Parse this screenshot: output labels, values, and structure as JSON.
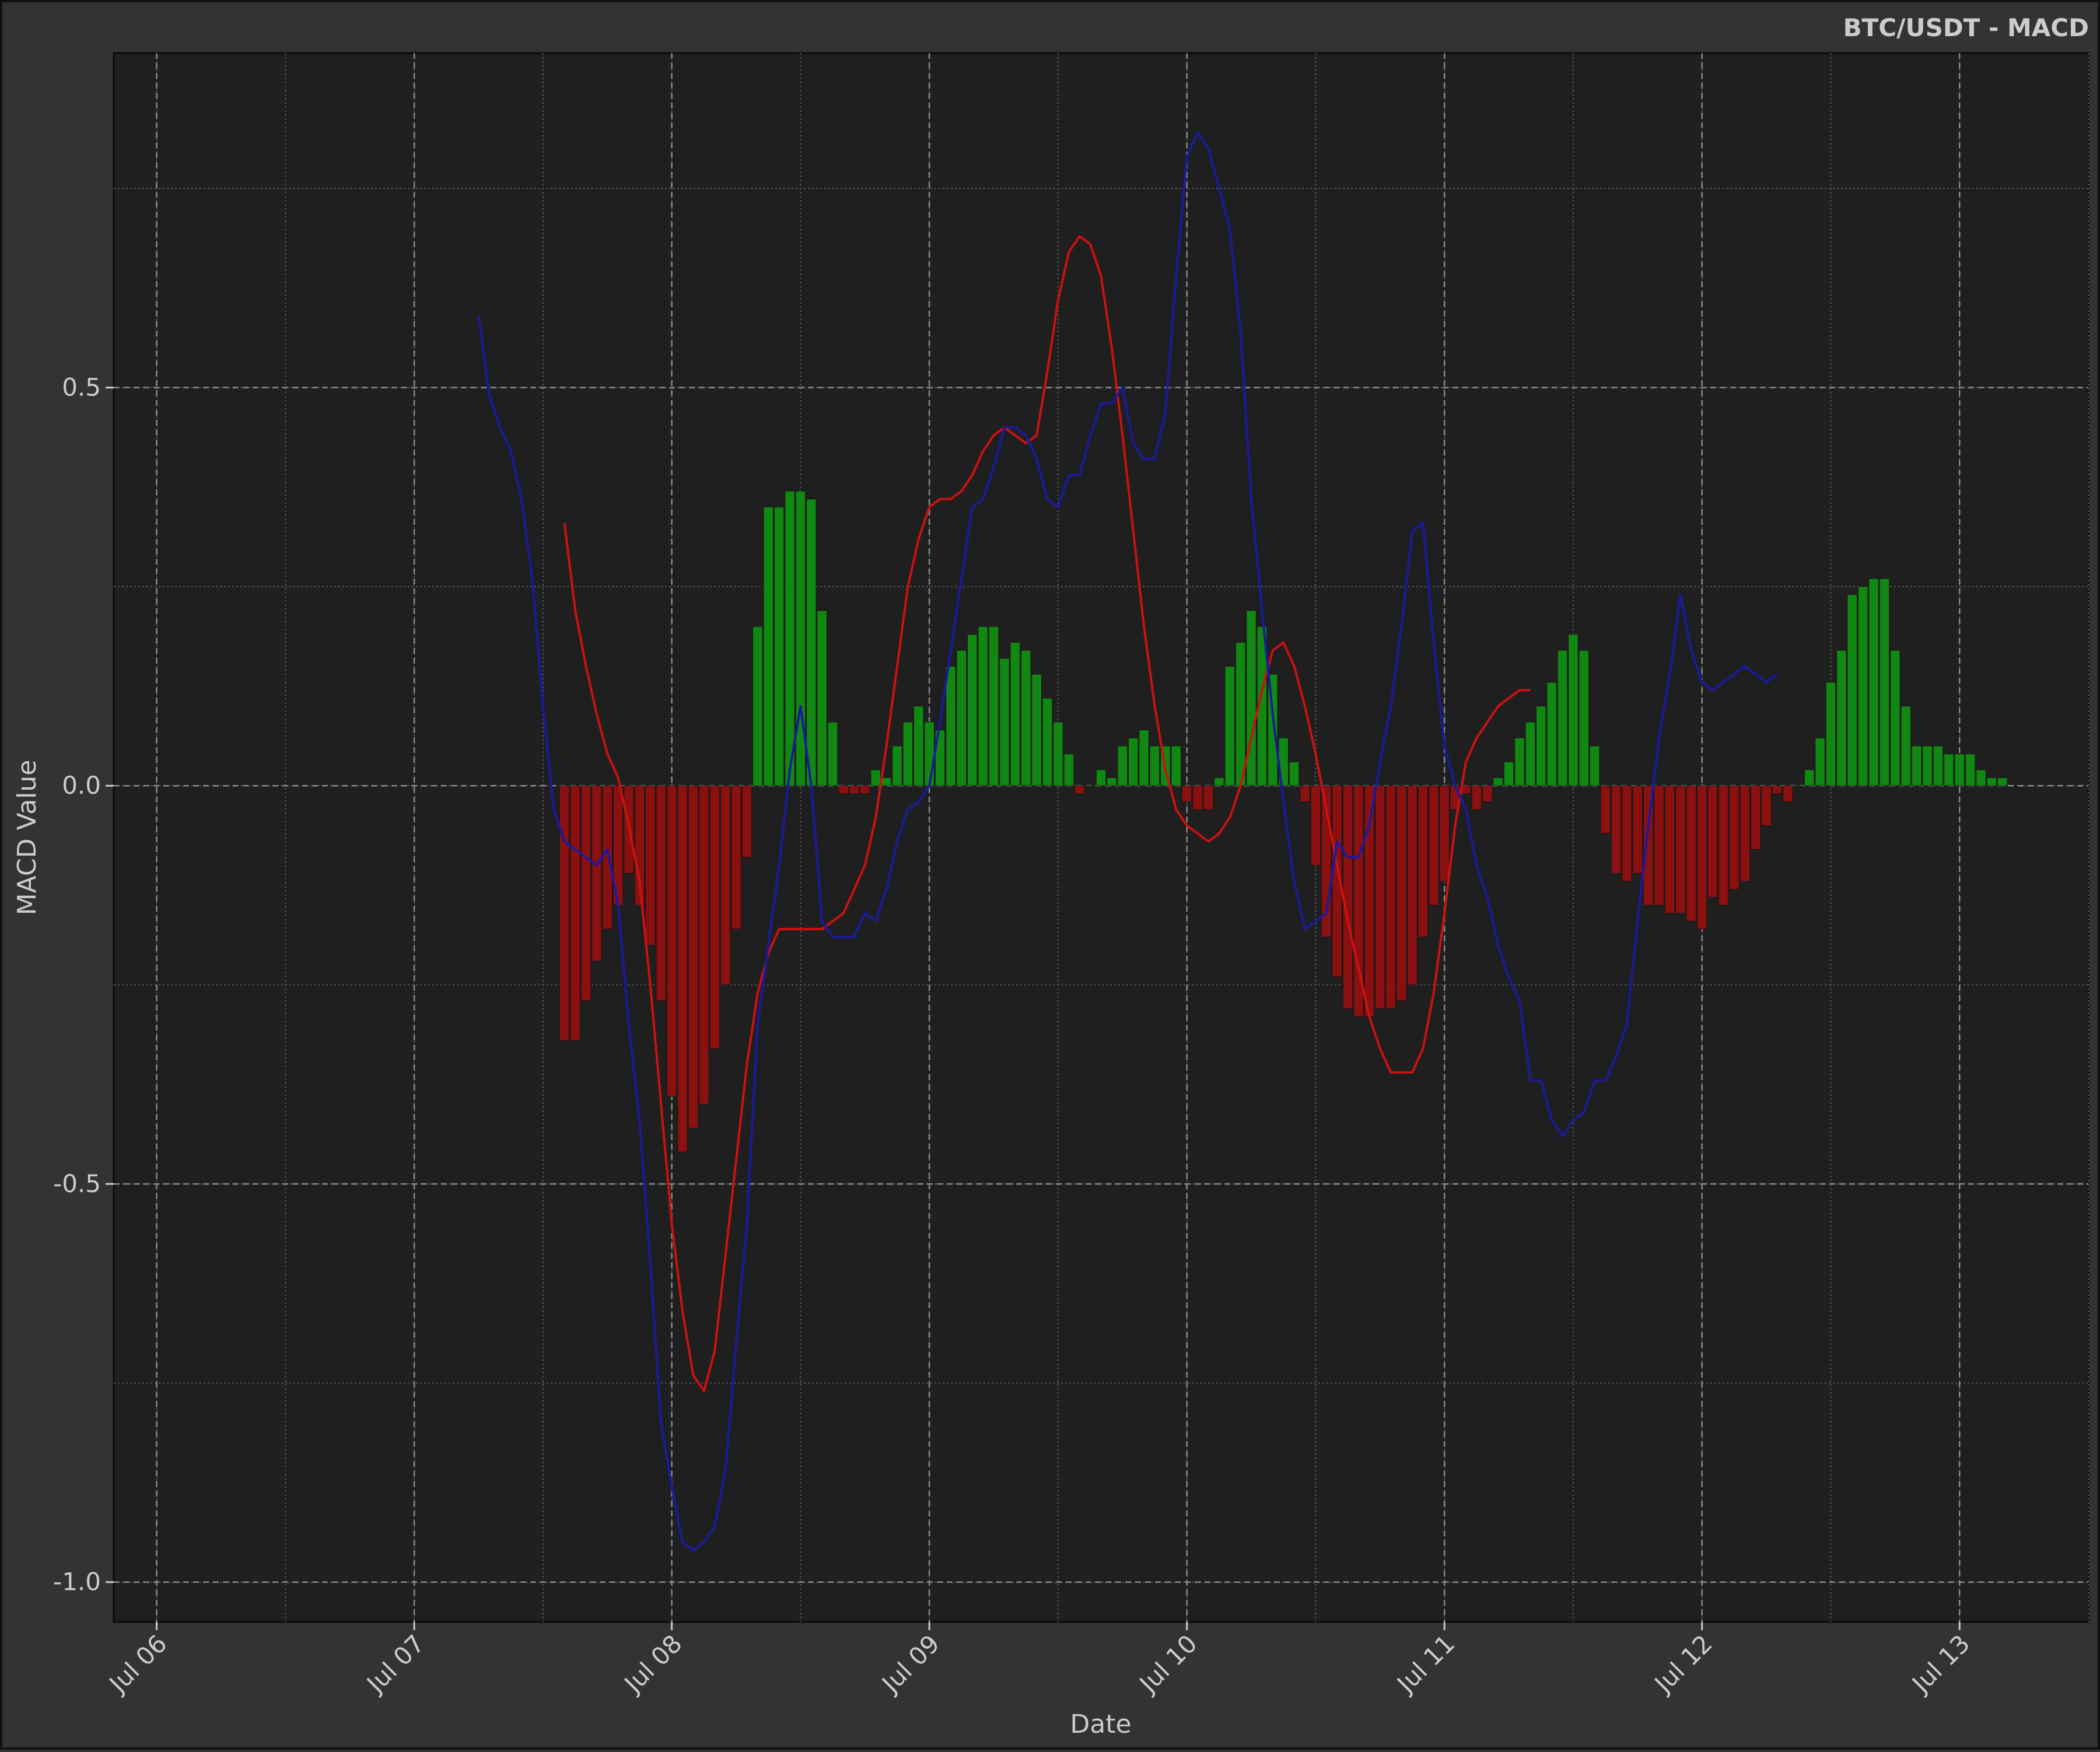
{
  "chart_data": {
    "type": "line",
    "title": "BTC/USDT - MACD",
    "xlabel": "Date",
    "ylabel": "MACD Value",
    "x_range": [
      "2023-07-05T20:00",
      "2023-07-13T12:00"
    ],
    "ylim": [
      -1.05,
      0.92
    ],
    "x_ticks": [
      {
        "date": "2023-07-06T00:00",
        "label": "Jul 06"
      },
      {
        "date": "2023-07-07T00:00",
        "label": "Jul 07"
      },
      {
        "date": "2023-07-08T00:00",
        "label": "Jul 08"
      },
      {
        "date": "2023-07-09T00:00",
        "label": "Jul 09"
      },
      {
        "date": "2023-07-10T00:00",
        "label": "Jul 10"
      },
      {
        "date": "2023-07-11T00:00",
        "label": "Jul 11"
      },
      {
        "date": "2023-07-12T00:00",
        "label": "Jul 12"
      },
      {
        "date": "2023-07-13T00:00",
        "label": "Jul 13"
      }
    ],
    "y_ticks": [
      {
        "value": 0.5,
        "label": "0.5"
      },
      {
        "value": 0.0,
        "label": "0.0"
      },
      {
        "value": -0.5,
        "label": "-0.5"
      },
      {
        "value": -1.0,
        "label": "-1.0"
      }
    ],
    "grid": true,
    "colors": {
      "macd": "#1a1aa0",
      "signal": "#cc1111",
      "hist_pos": "#118811",
      "hist_neg": "#8b1010",
      "plot_bg": "#1f1f1f",
      "figure_bg": "#333333"
    },
    "series": [
      {
        "kind": "line",
        "color": "#1a1aa0",
        "points": [
          [
            "2023-07-07T06:00",
            0.59
          ],
          [
            "2023-07-07T07:00",
            0.49
          ],
          [
            "2023-07-07T08:00",
            0.45
          ],
          [
            "2023-07-07T09:00",
            0.42
          ],
          [
            "2023-07-07T10:00",
            0.36
          ],
          [
            "2023-07-07T11:00",
            0.26
          ],
          [
            "2023-07-07T12:00",
            0.1
          ],
          [
            "2023-07-07T13:00",
            -0.03
          ],
          [
            "2023-07-07T14:00",
            -0.07
          ],
          [
            "2023-07-07T15:00",
            -0.08
          ],
          [
            "2023-07-07T16:00",
            -0.09
          ],
          [
            "2023-07-07T17:00",
            -0.1
          ],
          [
            "2023-07-07T18:00",
            -0.08
          ],
          [
            "2023-07-07T19:00",
            -0.15
          ],
          [
            "2023-07-07T20:00",
            -0.3
          ],
          [
            "2023-07-07T21:00",
            -0.42
          ],
          [
            "2023-07-07T22:00",
            -0.6
          ],
          [
            "2023-07-07T23:00",
            -0.8
          ],
          [
            "2023-07-08T00:00",
            -0.88
          ],
          [
            "2023-07-08T01:00",
            -0.95
          ],
          [
            "2023-07-08T02:00",
            -0.96
          ],
          [
            "2023-07-08T03:00",
            -0.95
          ],
          [
            "2023-07-08T04:00",
            -0.93
          ],
          [
            "2023-07-08T05:00",
            -0.86
          ],
          [
            "2023-07-08T06:00",
            -0.7
          ],
          [
            "2023-07-08T07:00",
            -0.55
          ],
          [
            "2023-07-08T08:00",
            -0.3
          ],
          [
            "2023-07-08T09:00",
            -0.2
          ],
          [
            "2023-07-08T10:00",
            -0.1
          ],
          [
            "2023-07-08T11:00",
            0.02
          ],
          [
            "2023-07-08T12:00",
            0.1
          ],
          [
            "2023-07-08T13:00",
            0.0
          ],
          [
            "2023-07-08T14:00",
            -0.17
          ],
          [
            "2023-07-08T15:00",
            -0.19
          ],
          [
            "2023-07-08T16:00",
            -0.19
          ],
          [
            "2023-07-08T17:00",
            -0.19
          ],
          [
            "2023-07-08T18:00",
            -0.16
          ],
          [
            "2023-07-08T19:00",
            -0.17
          ],
          [
            "2023-07-08T20:00",
            -0.13
          ],
          [
            "2023-07-08T21:00",
            -0.07
          ],
          [
            "2023-07-08T22:00",
            -0.03
          ],
          [
            "2023-07-08T23:00",
            -0.02
          ],
          [
            "2023-07-09T00:00",
            0.0
          ],
          [
            "2023-07-09T01:00",
            0.08
          ],
          [
            "2023-07-09T02:00",
            0.17
          ],
          [
            "2023-07-09T03:00",
            0.26
          ],
          [
            "2023-07-09T04:00",
            0.35
          ],
          [
            "2023-07-09T05:00",
            0.36
          ],
          [
            "2023-07-09T06:00",
            0.4
          ],
          [
            "2023-07-09T07:00",
            0.45
          ],
          [
            "2023-07-09T08:00",
            0.45
          ],
          [
            "2023-07-09T09:00",
            0.44
          ],
          [
            "2023-07-09T10:00",
            0.41
          ],
          [
            "2023-07-09T11:00",
            0.36
          ],
          [
            "2023-07-09T12:00",
            0.35
          ],
          [
            "2023-07-09T13:00",
            0.39
          ],
          [
            "2023-07-09T14:00",
            0.39
          ],
          [
            "2023-07-09T15:00",
            0.44
          ],
          [
            "2023-07-09T16:00",
            0.48
          ],
          [
            "2023-07-09T17:00",
            0.48
          ],
          [
            "2023-07-09T18:00",
            0.5
          ],
          [
            "2023-07-09T19:00",
            0.43
          ],
          [
            "2023-07-09T20:00",
            0.41
          ],
          [
            "2023-07-09T21:00",
            0.41
          ],
          [
            "2023-07-09T22:00",
            0.47
          ],
          [
            "2023-07-09T23:00",
            0.64
          ],
          [
            "2023-07-10T00:00",
            0.79
          ],
          [
            "2023-07-10T01:00",
            0.82
          ],
          [
            "2023-07-10T02:00",
            0.8
          ],
          [
            "2023-07-10T03:00",
            0.75
          ],
          [
            "2023-07-10T04:00",
            0.7
          ],
          [
            "2023-07-10T05:00",
            0.57
          ],
          [
            "2023-07-10T06:00",
            0.36
          ],
          [
            "2023-07-10T07:00",
            0.22
          ],
          [
            "2023-07-10T08:00",
            0.09
          ],
          [
            "2023-07-10T09:00",
            -0.02
          ],
          [
            "2023-07-10T10:00",
            -0.12
          ],
          [
            "2023-07-10T11:00",
            -0.18
          ],
          [
            "2023-07-10T12:00",
            -0.17
          ],
          [
            "2023-07-10T13:00",
            -0.16
          ],
          [
            "2023-07-10T14:00",
            -0.07
          ],
          [
            "2023-07-10T15:00",
            -0.09
          ],
          [
            "2023-07-10T16:00",
            -0.09
          ],
          [
            "2023-07-10T17:00",
            -0.05
          ],
          [
            "2023-07-10T18:00",
            0.03
          ],
          [
            "2023-07-10T19:00",
            0.1
          ],
          [
            "2023-07-10T20:00",
            0.2
          ],
          [
            "2023-07-10T21:00",
            0.32
          ],
          [
            "2023-07-10T22:00",
            0.33
          ],
          [
            "2023-07-10T23:00",
            0.18
          ],
          [
            "2023-07-11T00:00",
            0.05
          ],
          [
            "2023-07-11T01:00",
            0.0
          ],
          [
            "2023-07-11T02:00",
            -0.03
          ],
          [
            "2023-07-11T03:00",
            -0.1
          ],
          [
            "2023-07-11T04:00",
            -0.14
          ],
          [
            "2023-07-11T05:00",
            -0.2
          ],
          [
            "2023-07-11T06:00",
            -0.24
          ],
          [
            "2023-07-11T07:00",
            -0.27
          ],
          [
            "2023-07-11T08:00",
            -0.37
          ],
          [
            "2023-07-11T09:00",
            -0.37
          ],
          [
            "2023-07-11T10:00",
            -0.42
          ],
          [
            "2023-07-11T11:00",
            -0.44
          ],
          [
            "2023-07-11T12:00",
            -0.42
          ],
          [
            "2023-07-11T13:00",
            -0.41
          ],
          [
            "2023-07-11T14:00",
            -0.37
          ],
          [
            "2023-07-11T15:00",
            -0.37
          ],
          [
            "2023-07-11T16:00",
            -0.34
          ],
          [
            "2023-07-11T17:00",
            -0.3
          ],
          [
            "2023-07-11T18:00",
            -0.17
          ],
          [
            "2023-07-11T19:00",
            -0.05
          ],
          [
            "2023-07-11T20:00",
            0.06
          ],
          [
            "2023-07-11T21:00",
            0.14
          ],
          [
            "2023-07-11T22:00",
            0.24
          ],
          [
            "2023-07-11T23:00",
            0.17
          ],
          [
            "2023-07-12T00:00",
            0.13
          ],
          [
            "2023-07-12T01:00",
            0.12
          ],
          [
            "2023-07-12T02:00",
            0.13
          ],
          [
            "2023-07-12T03:00",
            0.14
          ],
          [
            "2023-07-12T04:00",
            0.15
          ],
          [
            "2023-07-12T05:00",
            0.14
          ],
          [
            "2023-07-12T06:00",
            0.13
          ],
          [
            "2023-07-12T07:00",
            0.14
          ]
        ]
      },
      {
        "kind": "line",
        "color": "#cc1111",
        "points": [
          [
            "2023-07-07T14:00",
            0.33
          ],
          [
            "2023-07-07T15:00",
            0.22
          ],
          [
            "2023-07-07T16:00",
            0.15
          ],
          [
            "2023-07-07T17:00",
            0.09
          ],
          [
            "2023-07-07T18:00",
            0.04
          ],
          [
            "2023-07-07T19:00",
            0.01
          ],
          [
            "2023-07-07T20:00",
            -0.05
          ],
          [
            "2023-07-07T21:00",
            -0.12
          ],
          [
            "2023-07-07T22:00",
            -0.25
          ],
          [
            "2023-07-07T23:00",
            -0.4
          ],
          [
            "2023-07-08T00:00",
            -0.55
          ],
          [
            "2023-07-08T01:00",
            -0.66
          ],
          [
            "2023-07-08T02:00",
            -0.74
          ],
          [
            "2023-07-08T03:00",
            -0.76
          ],
          [
            "2023-07-08T04:00",
            -0.71
          ],
          [
            "2023-07-08T05:00",
            -0.59
          ],
          [
            "2023-07-08T06:00",
            -0.47
          ],
          [
            "2023-07-08T07:00",
            -0.35
          ],
          [
            "2023-07-08T08:00",
            -0.26
          ],
          [
            "2023-07-08T09:00",
            -0.21
          ],
          [
            "2023-07-08T10:00",
            -0.18
          ],
          [
            "2023-07-08T11:00",
            -0.18
          ],
          [
            "2023-07-08T12:00",
            -0.18
          ],
          [
            "2023-07-08T13:00",
            -0.18
          ],
          [
            "2023-07-08T14:00",
            -0.18
          ],
          [
            "2023-07-08T15:00",
            -0.17
          ],
          [
            "2023-07-08T16:00",
            -0.16
          ],
          [
            "2023-07-08T17:00",
            -0.13
          ],
          [
            "2023-07-08T18:00",
            -0.1
          ],
          [
            "2023-07-08T19:00",
            -0.04
          ],
          [
            "2023-07-08T20:00",
            0.05
          ],
          [
            "2023-07-08T21:00",
            0.15
          ],
          [
            "2023-07-08T22:00",
            0.25
          ],
          [
            "2023-07-08T23:00",
            0.31
          ],
          [
            "2023-07-09T00:00",
            0.35
          ],
          [
            "2023-07-09T01:00",
            0.36
          ],
          [
            "2023-07-09T02:00",
            0.36
          ],
          [
            "2023-07-09T03:00",
            0.37
          ],
          [
            "2023-07-09T04:00",
            0.39
          ],
          [
            "2023-07-09T05:00",
            0.42
          ],
          [
            "2023-07-09T06:00",
            0.44
          ],
          [
            "2023-07-09T07:00",
            0.45
          ],
          [
            "2023-07-09T08:00",
            0.44
          ],
          [
            "2023-07-09T09:00",
            0.43
          ],
          [
            "2023-07-09T10:00",
            0.44
          ],
          [
            "2023-07-09T11:00",
            0.52
          ],
          [
            "2023-07-09T12:00",
            0.61
          ],
          [
            "2023-07-09T13:00",
            0.67
          ],
          [
            "2023-07-09T14:00",
            0.69
          ],
          [
            "2023-07-09T15:00",
            0.68
          ],
          [
            "2023-07-09T16:00",
            0.64
          ],
          [
            "2023-07-09T17:00",
            0.55
          ],
          [
            "2023-07-09T18:00",
            0.44
          ],
          [
            "2023-07-09T19:00",
            0.32
          ],
          [
            "2023-07-09T20:00",
            0.2
          ],
          [
            "2023-07-09T21:00",
            0.1
          ],
          [
            "2023-07-09T22:00",
            0.02
          ],
          [
            "2023-07-09T23:00",
            -0.03
          ],
          [
            "2023-07-10T00:00",
            -0.05
          ],
          [
            "2023-07-10T01:00",
            -0.06
          ],
          [
            "2023-07-10T02:00",
            -0.07
          ],
          [
            "2023-07-10T03:00",
            -0.06
          ],
          [
            "2023-07-10T04:00",
            -0.04
          ],
          [
            "2023-07-10T05:00",
            0.0
          ],
          [
            "2023-07-10T06:00",
            0.06
          ],
          [
            "2023-07-10T07:00",
            0.12
          ],
          [
            "2023-07-10T08:00",
            0.17
          ],
          [
            "2023-07-10T09:00",
            0.18
          ],
          [
            "2023-07-10T10:00",
            0.15
          ],
          [
            "2023-07-10T11:00",
            0.1
          ],
          [
            "2023-07-10T12:00",
            0.04
          ],
          [
            "2023-07-10T13:00",
            -0.03
          ],
          [
            "2023-07-10T14:00",
            -0.1
          ],
          [
            "2023-07-10T15:00",
            -0.17
          ],
          [
            "2023-07-10T16:00",
            -0.23
          ],
          [
            "2023-07-10T17:00",
            -0.29
          ],
          [
            "2023-07-10T18:00",
            -0.33
          ],
          [
            "2023-07-10T19:00",
            -0.36
          ],
          [
            "2023-07-10T20:00",
            -0.36
          ],
          [
            "2023-07-10T21:00",
            -0.36
          ],
          [
            "2023-07-10T22:00",
            -0.33
          ],
          [
            "2023-07-10T23:00",
            -0.26
          ],
          [
            "2023-07-11T00:00",
            -0.16
          ],
          [
            "2023-07-11T01:00",
            -0.05
          ],
          [
            "2023-07-11T02:00",
            0.03
          ],
          [
            "2023-07-11T03:00",
            0.06
          ],
          [
            "2023-07-11T04:00",
            0.08
          ],
          [
            "2023-07-11T05:00",
            0.1
          ],
          [
            "2023-07-11T06:00",
            0.11
          ],
          [
            "2023-07-11T07:00",
            0.12
          ],
          [
            "2023-07-11T08:00",
            0.12
          ]
        ]
      },
      {
        "kind": "bar",
        "color_pos": "#118811",
        "color_neg": "#8b1010",
        "start": "2023-07-07T14:00",
        "step_hours": 1,
        "values": [
          -0.32,
          -0.32,
          -0.27,
          -0.22,
          -0.18,
          -0.15,
          -0.11,
          -0.15,
          -0.2,
          -0.27,
          -0.39,
          -0.46,
          -0.43,
          -0.4,
          -0.33,
          -0.25,
          -0.18,
          -0.09,
          0.2,
          0.35,
          0.35,
          0.37,
          0.37,
          0.36,
          0.22,
          0.08,
          -0.01,
          -0.01,
          -0.01,
          0.02,
          0.01,
          0.05,
          0.08,
          0.1,
          0.08,
          0.07,
          0.15,
          0.17,
          0.19,
          0.2,
          0.2,
          0.16,
          0.18,
          0.17,
          0.14,
          0.11,
          0.08,
          0.04,
          -0.01,
          0.0,
          0.02,
          0.01,
          0.05,
          0.06,
          0.07,
          0.05,
          0.05,
          0.05,
          -0.02,
          -0.03,
          -0.03,
          0.01,
          0.15,
          0.18,
          0.22,
          0.2,
          0.14,
          0.06,
          0.03,
          -0.02,
          -0.1,
          -0.19,
          -0.24,
          -0.28,
          -0.29,
          -0.29,
          -0.28,
          -0.28,
          -0.27,
          -0.25,
          -0.19,
          -0.15,
          -0.12,
          -0.03,
          -0.01,
          -0.03,
          -0.02,
          0.01,
          0.03,
          0.06,
          0.08,
          0.1,
          0.13,
          0.17,
          0.19,
          0.17,
          0.05,
          -0.06,
          -0.11,
          -0.12,
          -0.11,
          -0.15,
          -0.15,
          -0.16,
          -0.16,
          -0.17,
          -0.18,
          -0.14,
          -0.15,
          -0.13,
          -0.12,
          -0.08,
          -0.05,
          -0.01,
          -0.02,
          0.0,
          0.02,
          0.06,
          0.13,
          0.17,
          0.24,
          0.25,
          0.26,
          0.26,
          0.17,
          0.1,
          0.05,
          0.05,
          0.05,
          0.04,
          0.04,
          0.04,
          0.02,
          0.01,
          0.01
        ]
      }
    ]
  }
}
